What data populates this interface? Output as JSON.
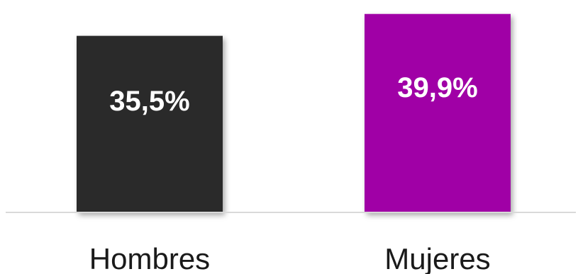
{
  "chart_data": {
    "type": "bar",
    "categories": [
      "Hombres",
      "Mujeres"
    ],
    "values": [
      35.5,
      39.9
    ],
    "value_labels": [
      "35,5%",
      "39,9%"
    ],
    "colors": [
      "#2b2b2b",
      "#a000a6"
    ],
    "title": "",
    "xlabel": "",
    "ylabel": "",
    "ylim": [
      0,
      41
    ],
    "grid": false,
    "legend": "none"
  }
}
